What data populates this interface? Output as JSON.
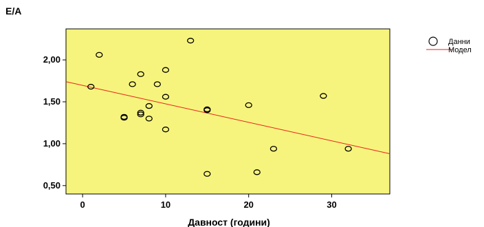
{
  "chart_data": {
    "type": "scatter",
    "ylabel": "E/A",
    "xlabel": "Давност (години)",
    "xlim": [
      -2,
      37
    ],
    "ylim": [
      0.4,
      2.37
    ],
    "x_ticks": [
      0,
      10,
      20,
      30
    ],
    "x_tick_labels": [
      "0",
      "10",
      "20",
      "30"
    ],
    "y_ticks": [
      0.5,
      1.0,
      1.5,
      2.0
    ],
    "y_tick_labels": [
      "0,50",
      "1,00",
      "1,50",
      "2,00"
    ],
    "plot_background": "#f7f47d",
    "point_color": "#000000",
    "line_color": "#e8201a",
    "grid": false,
    "legend_position": "top-right",
    "series": [
      {
        "name": "Данни",
        "kind": "scatter",
        "points": [
          {
            "x": 1,
            "y": 1.68
          },
          {
            "x": 2,
            "y": 2.06
          },
          {
            "x": 5,
            "y": 1.31
          },
          {
            "x": 5,
            "y": 1.32
          },
          {
            "x": 6,
            "y": 1.71
          },
          {
            "x": 7,
            "y": 1.83
          },
          {
            "x": 7,
            "y": 1.37
          },
          {
            "x": 7,
            "y": 1.35
          },
          {
            "x": 8,
            "y": 1.45
          },
          {
            "x": 8,
            "y": 1.3
          },
          {
            "x": 9,
            "y": 1.71
          },
          {
            "x": 10,
            "y": 1.88
          },
          {
            "x": 10,
            "y": 1.56
          },
          {
            "x": 10,
            "y": 1.17
          },
          {
            "x": 13,
            "y": 2.23
          },
          {
            "x": 15,
            "y": 1.41
          },
          {
            "x": 15,
            "y": 1.4
          },
          {
            "x": 15,
            "y": 0.64
          },
          {
            "x": 20,
            "y": 1.46
          },
          {
            "x": 21,
            "y": 0.66
          },
          {
            "x": 23,
            "y": 0.94
          },
          {
            "x": 29,
            "y": 1.57
          },
          {
            "x": 32,
            "y": 0.94
          }
        ]
      },
      {
        "name": "Модел",
        "kind": "line",
        "points": [
          {
            "x": -2,
            "y": 1.74
          },
          {
            "x": 37,
            "y": 0.88
          }
        ]
      }
    ]
  }
}
